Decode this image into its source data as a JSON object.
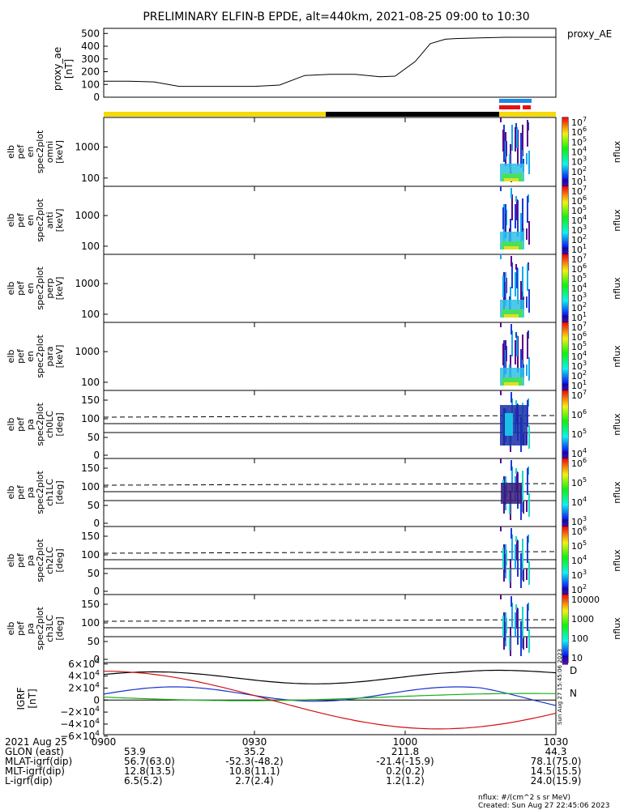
{
  "title": "PRELIMINARY ELFIN-B EPDE, alt=440km, 2021-08-25 09:00 to 10:30",
  "footer": {
    "units": "nflux: #/(cm^2 s sr MeV)",
    "created": "Created: Sun Aug 27 22:45:06 2023",
    "stamp": "Sun Aug 27 15:45:06 2023"
  },
  "xaxis": {
    "ticks": [
      "0900",
      "0930",
      "1000",
      "1030"
    ],
    "rows": [
      {
        "label": "2021 Aug 25",
        "values": [
          "",
          "",
          "",
          ""
        ]
      },
      {
        "label": "GLON (east)",
        "values": [
          "53.9",
          "35.2",
          "211.8",
          "44.3"
        ]
      },
      {
        "label": "MLAT-igrf(dip)",
        "values": [
          "56.7(63.0)",
          "-52.3(-48.2)",
          "-21.4(-15.9)",
          "78.1(75.0)"
        ]
      },
      {
        "label": "MLT-igrf(dip)",
        "values": [
          "12.8(13.5)",
          "10.8(11.1)",
          "0.2(0.2)",
          "14.5(15.5)"
        ]
      },
      {
        "label": "L-igrf(dip)",
        "values": [
          "6.5(5.2)",
          "2.7(2.4)",
          "1.2(1.2)",
          "24.0(15.9)"
        ]
      }
    ]
  },
  "chart_data": [
    {
      "type": "line",
      "panel": "proxy_ae",
      "ylabel": [
        "proxy_ae",
        "[nT]"
      ],
      "legend": "proxy_AE",
      "yticks": [
        "500",
        "400",
        "300",
        "200",
        "100",
        "0"
      ],
      "ylim": [
        0,
        540
      ],
      "x": [
        0,
        5,
        10,
        15,
        20,
        25,
        30,
        35,
        40,
        45,
        50,
        55,
        58,
        62,
        65,
        68,
        70,
        75,
        80,
        85,
        90
      ],
      "y": [
        125,
        125,
        120,
        85,
        85,
        85,
        85,
        95,
        170,
        180,
        180,
        160,
        165,
        280,
        420,
        455,
        460,
        465,
        470,
        470,
        470
      ]
    },
    {
      "type": "heatmap",
      "panel": "omni",
      "ylabel": [
        "elb",
        "pef",
        "en",
        "spec2plot",
        "omni",
        "[keV]"
      ],
      "yticks": [
        "1000",
        "100"
      ],
      "cbar": [
        "10^7",
        "10^6",
        "10^5",
        "10^4",
        "10^3",
        "10^2",
        "10^1"
      ],
      "cbar_label": "nflux"
    },
    {
      "type": "heatmap",
      "panel": "anti",
      "ylabel": [
        "elb",
        "pef",
        "en",
        "spec2plot",
        "anti",
        "[keV]"
      ],
      "yticks": [
        "1000",
        "100"
      ],
      "cbar": [
        "10^7",
        "10^6",
        "10^5",
        "10^4",
        "10^3",
        "10^2",
        "10^1"
      ],
      "cbar_label": "nflux"
    },
    {
      "type": "heatmap",
      "panel": "perp",
      "ylabel": [
        "elb",
        "pef",
        "en",
        "spec2plot",
        "perp",
        "[keV]"
      ],
      "yticks": [
        "1000",
        "100"
      ],
      "cbar": [
        "10^7",
        "10^6",
        "10^5",
        "10^4",
        "10^3",
        "10^2",
        "10^1"
      ],
      "cbar_label": "nflux"
    },
    {
      "type": "heatmap",
      "panel": "para",
      "ylabel": [
        "elb",
        "pef",
        "en",
        "spec2plot",
        "para",
        "[keV]"
      ],
      "yticks": [
        "1000",
        "100"
      ],
      "cbar": [
        "10^7",
        "10^6",
        "10^5",
        "10^4",
        "10^3",
        "10^2",
        "10^1"
      ],
      "cbar_label": "nflux"
    },
    {
      "type": "heatmap",
      "panel": "ch0LC",
      "ylabel": [
        "elb",
        "pef",
        "pa",
        "spec2plot",
        "ch0LC",
        "[deg]"
      ],
      "yticks": [
        "150",
        "100",
        "50",
        "0"
      ],
      "cbar": [
        "10^7",
        "10^6",
        "10^5",
        "10^4"
      ],
      "cbar_label": "nflux"
    },
    {
      "type": "heatmap",
      "panel": "ch1LC",
      "ylabel": [
        "elb",
        "pef",
        "pa",
        "spec2plot",
        "ch1LC",
        "[deg]"
      ],
      "yticks": [
        "150",
        "100",
        "50",
        "0"
      ],
      "cbar": [
        "10^6",
        "10^5",
        "10^4",
        "10^3"
      ],
      "cbar_label": "nflux"
    },
    {
      "type": "heatmap",
      "panel": "ch2LC",
      "ylabel": [
        "elb",
        "pef",
        "pa",
        "spec2plot",
        "ch2LC",
        "[deg]"
      ],
      "yticks": [
        "150",
        "100",
        "50",
        "0"
      ],
      "cbar": [
        "10^6",
        "10^5",
        "10^4",
        "10^3",
        "10^2"
      ],
      "cbar_label": "nflux"
    },
    {
      "type": "heatmap",
      "panel": "ch3LC",
      "ylabel": [
        "elb",
        "pef",
        "pa",
        "spec2plot",
        "ch3LC",
        "[deg]"
      ],
      "yticks": [
        "150",
        "100",
        "50",
        "0"
      ],
      "cbar": [
        "10000",
        "1000",
        "100",
        "10"
      ],
      "cbar_label": "nflux"
    },
    {
      "type": "line",
      "panel": "IGRF",
      "ylabel": [
        "IGRF",
        "[nT]"
      ],
      "yticks": [
        "6×10^4",
        "4×10^4",
        "2×10^4",
        "0",
        "−2×10^4",
        "−4×10^4",
        "−6×10^4"
      ],
      "legend_labels": [
        "D",
        "N"
      ],
      "colors": {
        "black": "#000000",
        "blue": "#1a32d0",
        "green": "#18b018",
        "red": "#d01010"
      }
    }
  ],
  "colors": {
    "yellow": "#f5d90a",
    "black": "#000000",
    "blue_bar": "#1e88e5",
    "red_bar": "#e81010"
  }
}
